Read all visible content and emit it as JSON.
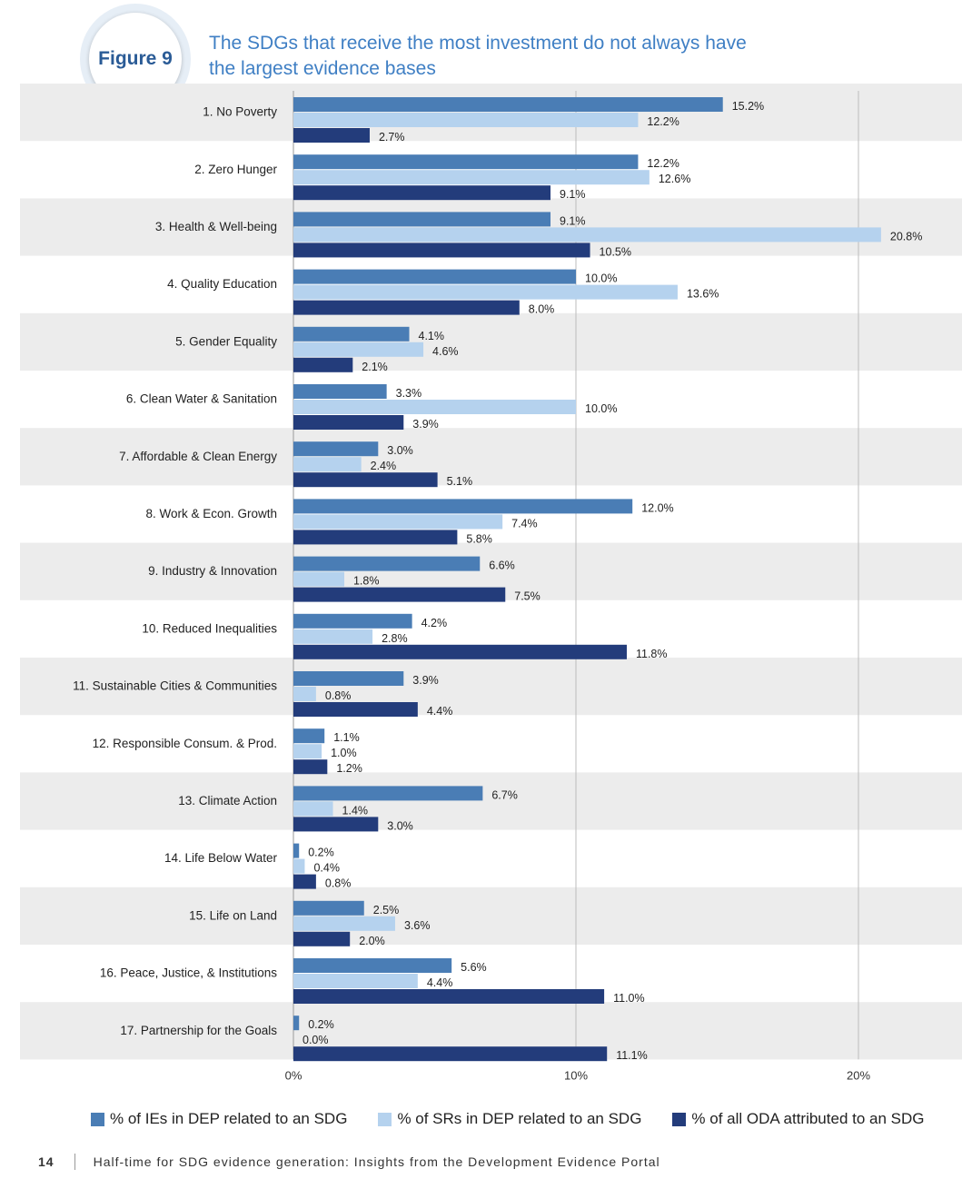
{
  "figure_label": "Figure 9",
  "headline": "The SDGs that receive the most investment do not always have the largest evidence bases",
  "footer": {
    "page_number": "14",
    "text": "Half-time for SDG evidence generation: Insights from the Development Evidence Portal"
  },
  "colors": {
    "band": "#ececec",
    "headline": "#3f7fc4",
    "series": [
      "#4a7db5",
      "#b5d2ee",
      "#233c7b"
    ]
  },
  "chart_data": {
    "type": "bar",
    "orientation": "horizontal",
    "categories": [
      "1. No Poverty",
      "2. Zero Hunger",
      "3. Health & Well-being",
      "4. Quality Education",
      "5. Gender Equality",
      "6. Clean Water & Sanitation",
      "7. Affordable & Clean Energy",
      "8. Work & Econ. Growth",
      "9. Industry & Innovation",
      "10. Reduced Inequalities",
      "11. Sustainable Cities & Communities",
      "12. Responsible Consum. & Prod.",
      "13. Climate Action",
      "14. Life Below Water",
      "15. Life on Land",
      "16. Peace, Justice, & Institutions",
      "17. Partnership for the Goals"
    ],
    "series": [
      {
        "name": "% of IEs in DEP related to an SDG",
        "values": [
          15.2,
          12.2,
          9.1,
          10.0,
          4.1,
          3.3,
          3.0,
          12.0,
          6.6,
          4.2,
          3.9,
          1.1,
          6.7,
          0.2,
          2.5,
          5.6,
          0.2
        ],
        "labels": [
          "15.2%",
          "12.2%",
          "9.1%",
          "10.0%",
          "4.1%",
          "3.3%",
          "3.0%",
          "12.0%",
          "6.6%",
          "4.2%",
          "3.9%",
          "1.1%",
          "6.7%",
          "0.2%",
          "2.5%",
          "5.6%",
          "0.2%"
        ]
      },
      {
        "name": "% of SRs in DEP related to an SDG",
        "values": [
          12.2,
          12.6,
          20.8,
          13.6,
          4.6,
          10.0,
          2.4,
          7.4,
          1.8,
          2.8,
          0.8,
          1.0,
          1.4,
          0.4,
          3.6,
          4.4,
          0.0
        ],
        "labels": [
          "12.2%",
          "12.6%",
          "20.8%",
          "13.6%",
          "4.6%",
          "10.0%",
          "2.4%",
          "7.4%",
          "1.8%",
          "2.8%",
          "0.8%",
          "1.0%",
          "1.4%",
          "0.4%",
          "3.6%",
          "4.4%",
          "0.0%"
        ]
      },
      {
        "name": "% of all ODA attributed to an SDG",
        "values": [
          2.7,
          9.1,
          10.5,
          8.0,
          2.1,
          3.9,
          5.1,
          5.8,
          7.5,
          11.8,
          4.4,
          1.2,
          3.0,
          0.8,
          2.0,
          11.0,
          11.1
        ],
        "labels": [
          "2.7%",
          "9.1%",
          "10.5%",
          "8.0%",
          "2.1%",
          "3.9%",
          "5.1%",
          "5.8%",
          "7.5%",
          "11.8%",
          "4.4%",
          "1.2%",
          "3.0%",
          "0.8%",
          "2.0%",
          "11.0%",
          "11.1%"
        ]
      }
    ],
    "xlim": [
      0,
      22
    ],
    "x_ticks": [
      0,
      10,
      20
    ],
    "x_tick_labels": [
      "0%",
      "10%",
      "20%"
    ],
    "grid": "vertical lines at 10% and 20%",
    "band_shading": "alternating grey bands on odd-numbered rows",
    "legend_position": "bottom"
  }
}
